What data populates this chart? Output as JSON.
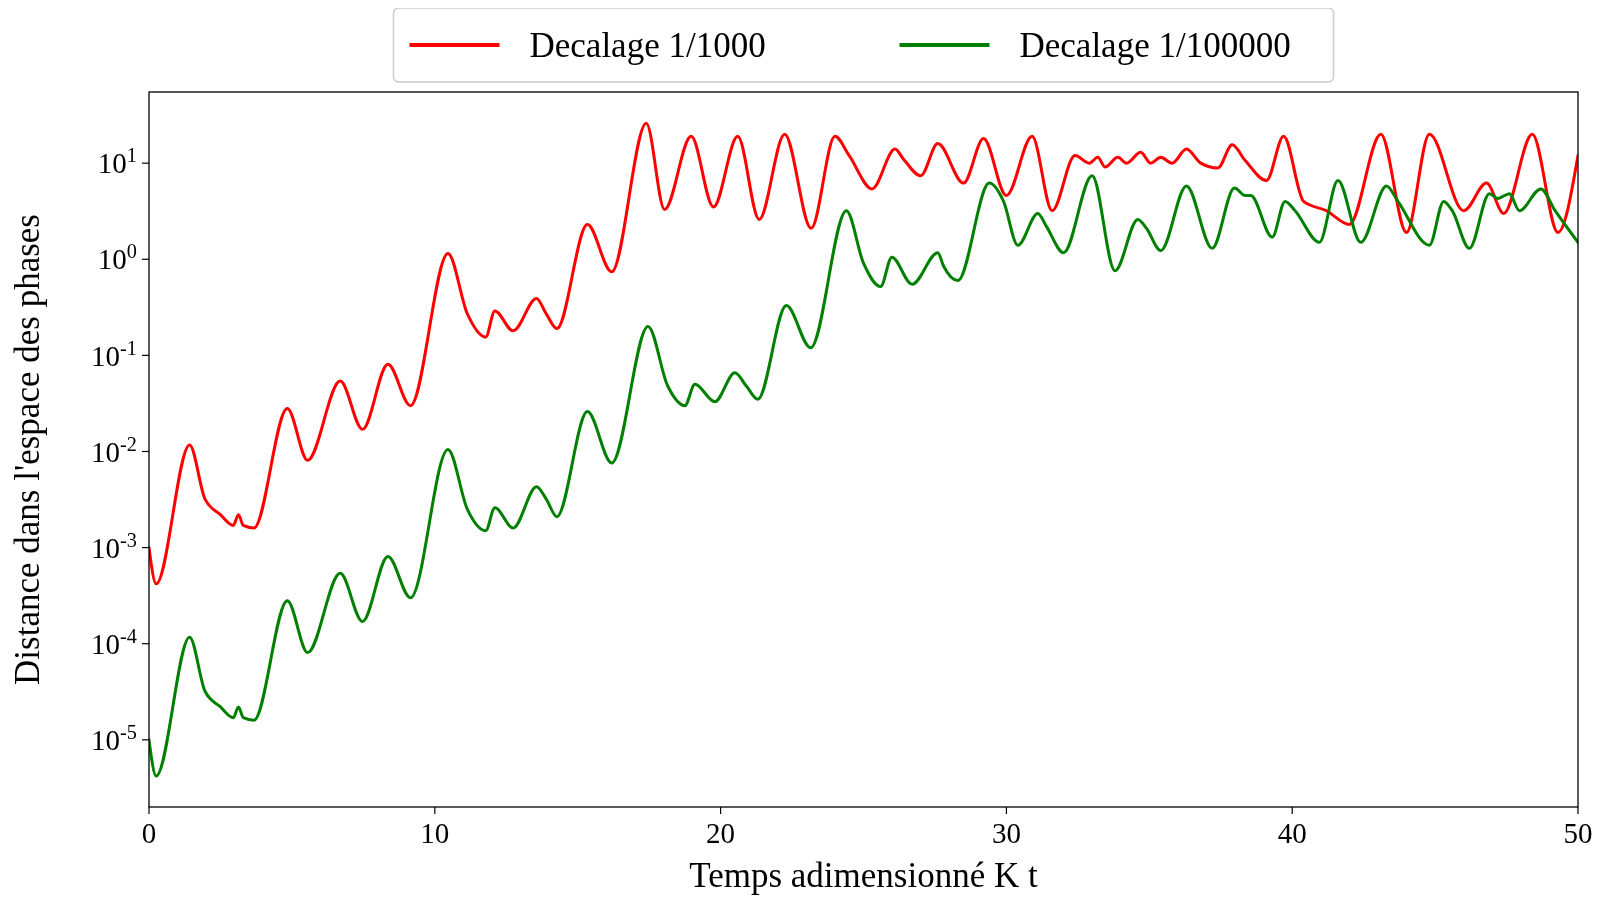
{
  "chart_data": {
    "type": "line",
    "xlabel": "Temps adimensionné K t",
    "ylabel": "Distance dans l'espace des phases",
    "log": "y",
    "grid": false,
    "legend": "top",
    "line_style": "solid",
    "marker": "none",
    "xlim": [
      0,
      50
    ],
    "xticks": [
      0,
      10,
      20,
      30,
      40,
      50
    ],
    "ylim": [
      2e-06,
      55
    ],
    "yticks": [
      {
        "value": 1e-05,
        "label": "10$^{-5}$"
      },
      {
        "value": 0.0001,
        "label": "10$^{-4}$"
      },
      {
        "value": 0.001,
        "label": "10$^{-3}$"
      },
      {
        "value": 0.01,
        "label": "10$^{-2}$"
      },
      {
        "value": 0.1,
        "label": "10$^{-1}$"
      },
      {
        "value": 1,
        "label": "10$^{0}$"
      },
      {
        "value": 10,
        "label": "10$^{1}$"
      }
    ],
    "series": [
      {
        "name": "Decalage 1/1000",
        "color": "#ff0000",
        "x": [
          0,
          0.25,
          1.42,
          1.96,
          2.5,
          2.95,
          3.13,
          3.3,
          3.67,
          4.84,
          5.55,
          6.69,
          7.47,
          8.36,
          9.15,
          10.46,
          11.14,
          11.78,
          12.1,
          12.74,
          13.56,
          13.9,
          14.27,
          15.34,
          16.19,
          17.4,
          18.04,
          18.97,
          19.75,
          20.6,
          21.35,
          22.24,
          23.17,
          24.0,
          24.5,
          25.3,
          26.1,
          26.4,
          27.0,
          27.6,
          28.5,
          29.2,
          30.0,
          30.9,
          31.6,
          32.4,
          32.9,
          33.2,
          33.45,
          33.9,
          34.2,
          34.7,
          35.05,
          35.4,
          35.8,
          36.3,
          36.8,
          37.4,
          37.9,
          38.35,
          39.1,
          39.7,
          40.4,
          41.2,
          42.0,
          43.1,
          44.0,
          44.8,
          46.0,
          46.8,
          47.4,
          48.4,
          49.3,
          50
        ],
        "values": [
          0.001,
          0.00042,
          0.0117,
          0.0032,
          0.0022,
          0.0017,
          0.0022,
          0.0017,
          0.0016,
          0.028,
          0.0081,
          0.054,
          0.017,
          0.081,
          0.03,
          1.15,
          0.27,
          0.155,
          0.29,
          0.18,
          0.39,
          0.27,
          0.19,
          2.3,
          0.74,
          26,
          3.3,
          19,
          3.5,
          19,
          2.6,
          20,
          2.1,
          19,
          12,
          5.4,
          14,
          11,
          7.4,
          16,
          6.2,
          18,
          4.6,
          19,
          3.2,
          12,
          10,
          11.5,
          9.1,
          11.5,
          10,
          13,
          10,
          11.5,
          10,
          14,
          10,
          8.9,
          15.5,
          10.7,
          6.6,
          19,
          4,
          3.2,
          2.3,
          20,
          1.9,
          20,
          3.2,
          6.2,
          3,
          20,
          1.9,
          12
        ]
      },
      {
        "name": "Decalage 1/100000",
        "color": "#008000",
        "x": [
          0,
          0.25,
          1.42,
          1.96,
          2.5,
          2.95,
          3.13,
          3.3,
          3.67,
          4.84,
          5.55,
          6.69,
          7.47,
          8.36,
          9.15,
          10.46,
          11.14,
          11.78,
          12.1,
          12.74,
          13.56,
          13.9,
          14.27,
          15.34,
          16.19,
          17.46,
          18.15,
          18.75,
          19.1,
          19.8,
          20.5,
          20.9,
          21.3,
          22.3,
          23.15,
          24.4,
          25.0,
          25.6,
          25.99,
          26.7,
          27.6,
          27.8,
          28.3,
          29.4,
          29.9,
          30.4,
          31.1,
          31.4,
          32.0,
          33.0,
          33.8,
          34.6,
          34.9,
          35.4,
          36.3,
          37.2,
          37.98,
          38.35,
          38.55,
          39.3,
          39.75,
          40.1,
          40.95,
          41.6,
          42.4,
          43.3,
          43.7,
          44.8,
          45.3,
          45.6,
          46.2,
          46.9,
          47.2,
          47.6,
          47.95,
          48.7,
          49.2,
          50
        ],
        "values": [
          1e-05,
          4.2e-06,
          0.000117,
          3.2e-05,
          2.2e-05,
          1.7e-05,
          2.2e-05,
          1.7e-05,
          1.6e-05,
          0.00028,
          8.1e-05,
          0.00054,
          0.00017,
          0.00081,
          0.0003,
          0.0105,
          0.0025,
          0.0015,
          0.0026,
          0.0016,
          0.0043,
          0.0032,
          0.0021,
          0.026,
          0.0076,
          0.2,
          0.048,
          0.03,
          0.05,
          0.033,
          0.066,
          0.048,
          0.035,
          0.33,
          0.12,
          3.2,
          0.91,
          0.52,
          1.05,
          0.55,
          1.17,
          0.85,
          0.6,
          6.2,
          4,
          1.4,
          3,
          2.2,
          1.17,
          7.4,
          0.76,
          2.6,
          2.1,
          1.23,
          5.8,
          1.3,
          5.5,
          4.6,
          4.6,
          1.7,
          4,
          3.2,
          1.5,
          6.6,
          1.5,
          5.8,
          4,
          1.4,
          4,
          3.2,
          1.3,
          4.8,
          4.3,
          4.8,
          3.2,
          5.4,
          3.2,
          1.5
        ]
      }
    ]
  }
}
